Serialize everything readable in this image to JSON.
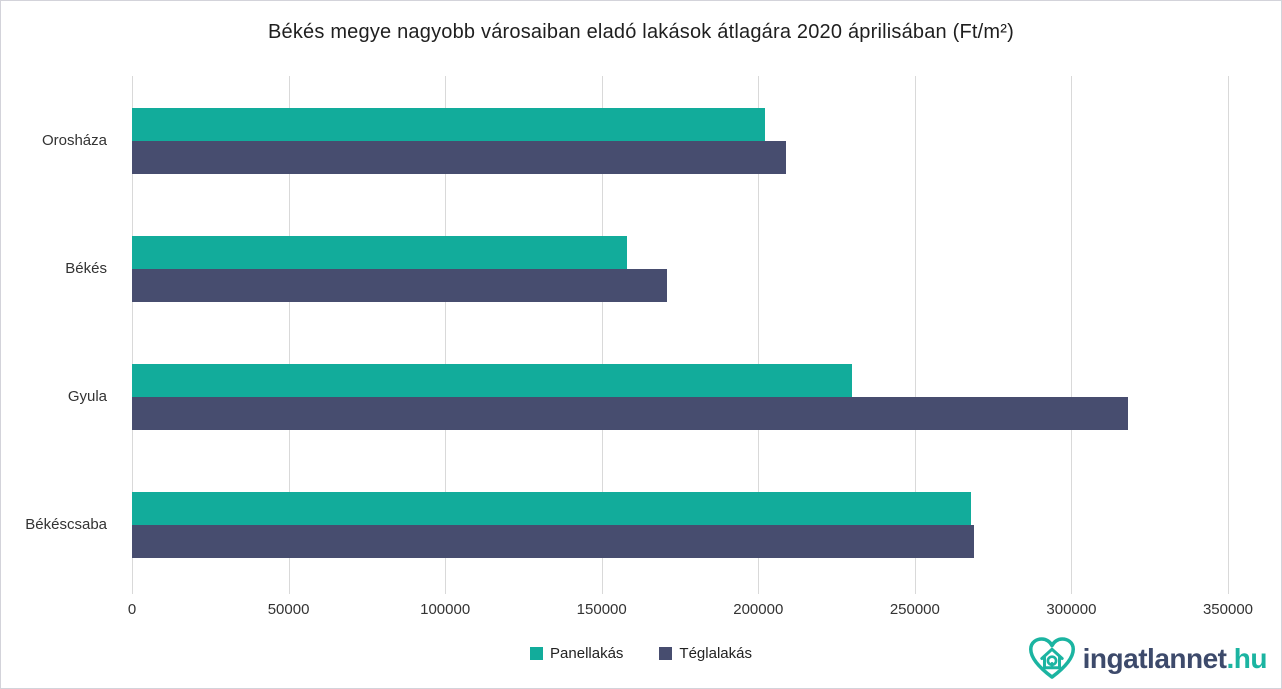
{
  "title": "Békés megye nagyobb városaiban eladó lakások átlagára 2020 áprilisában (Ft/m²)",
  "chart_data": {
    "type": "bar",
    "orientation": "horizontal",
    "categories": [
      "Orosháza",
      "Békés",
      "Gyula",
      "Békéscsaba"
    ],
    "series": [
      {
        "name": "Panellakás",
        "color": "#12AC9B",
        "values": [
          202000,
          158000,
          230000,
          268000
        ]
      },
      {
        "name": "Téglalakás",
        "color": "#474D6F",
        "values": [
          209000,
          171000,
          318000,
          269000
        ]
      }
    ],
    "xlim": [
      0,
      350000
    ],
    "x_ticks": [
      0,
      50000,
      100000,
      150000,
      200000,
      250000,
      300000,
      350000
    ],
    "x_tick_labels": [
      "0",
      "50000",
      "100000",
      "150000",
      "200000",
      "250000",
      "300000",
      "350000"
    ],
    "grid": "vertical",
    "legend_position": "bottom",
    "xlabel": "",
    "ylabel": ""
  },
  "legend": {
    "items": [
      {
        "label": "Panellakás",
        "color": "#12AC9B"
      },
      {
        "label": "Téglalakás",
        "color": "#474D6F"
      }
    ]
  },
  "logo": {
    "icon": "heart-house-icon",
    "text_main": "ingatlannet",
    "text_suffix": ".hu",
    "color_main": "#3d4a6b",
    "color_accent": "#1bb4a1"
  },
  "colors": {
    "background": "#ffffff",
    "gridline": "#d9d9d9",
    "title_text": "#1f1f1f",
    "axis_text": "#333333"
  }
}
